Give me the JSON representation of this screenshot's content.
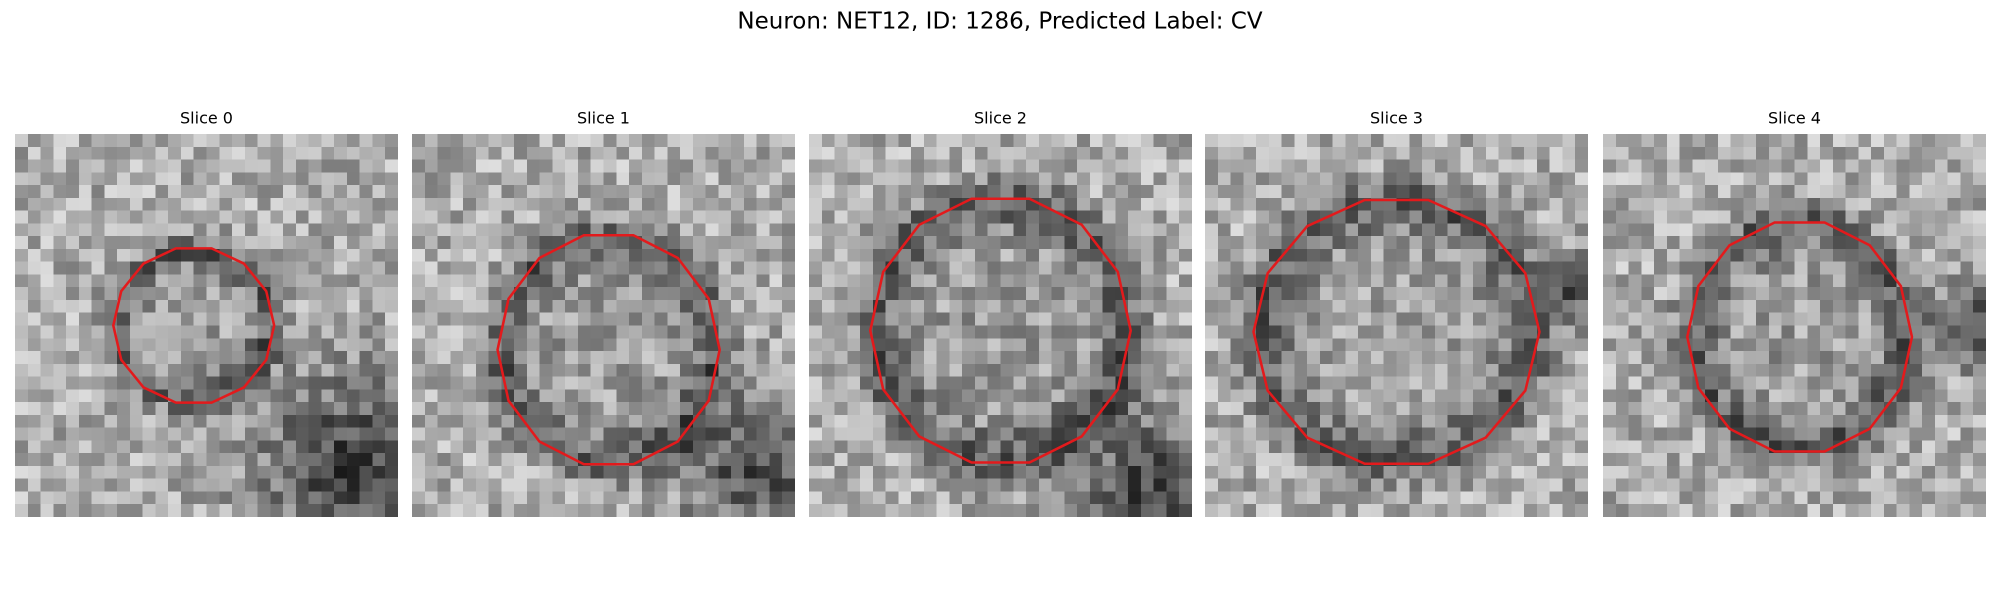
{
  "title": "Neuron: NET12, ID: 1286, Predicted Label: CV",
  "panels": [
    {
      "title": "Slice 0"
    },
    {
      "title": "Slice 1"
    },
    {
      "title": "Slice 2"
    },
    {
      "title": "Slice 3"
    },
    {
      "title": "Slice 4"
    }
  ]
}
